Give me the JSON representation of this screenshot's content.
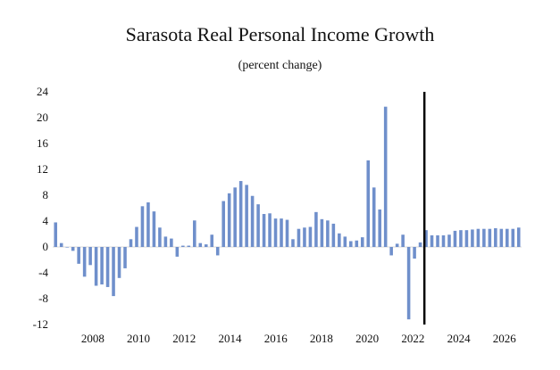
{
  "chart_data": {
    "type": "bar",
    "title": "Sarasota Real Personal Income Growth",
    "subtitle": "(percent change)",
    "xlabel": "",
    "ylabel": "",
    "ylim": [
      -12,
      24
    ],
    "yticks": [
      "24",
      "20",
      "16",
      "12",
      "8",
      "4",
      "0",
      "-4",
      "-8",
      "-12"
    ],
    "xticks": [
      {
        "label": "2008",
        "year": 2008
      },
      {
        "label": "2010",
        "year": 2010
      },
      {
        "label": "2012",
        "year": 2012
      },
      {
        "label": "2014",
        "year": 2014
      },
      {
        "label": "2016",
        "year": 2016
      },
      {
        "label": "2018",
        "year": 2018
      },
      {
        "label": "2020",
        "year": 2020
      },
      {
        "label": "2022",
        "year": 2022
      },
      {
        "label": "2024",
        "year": 2024
      },
      {
        "label": "2026",
        "year": 2026
      }
    ],
    "start_year": 2006.25,
    "end_year": 2026.75,
    "forecast_divider_year": 2022.5,
    "bar_color": "#6f8fcb",
    "divider_color": "#000000",
    "series": [
      {
        "name": "Real Personal Income Growth",
        "values": [
          3.8,
          0.6,
          0.0,
          -0.6,
          -2.6,
          -4.6,
          -2.8,
          -6.0,
          -5.8,
          -6.2,
          -7.6,
          -4.8,
          -3.3,
          1.2,
          3.1,
          6.3,
          6.9,
          5.5,
          3.0,
          1.6,
          1.3,
          -1.5,
          0.2,
          0.2,
          4.1,
          0.6,
          0.4,
          1.9,
          -1.3,
          7.1,
          8.3,
          9.2,
          10.2,
          9.6,
          7.9,
          6.6,
          5.1,
          5.2,
          4.4,
          4.4,
          4.2,
          1.2,
          2.8,
          3.0,
          3.1,
          5.4,
          4.3,
          4.1,
          3.6,
          2.1,
          1.6,
          0.9,
          1.0,
          1.5,
          13.4,
          9.2,
          5.8,
          21.7,
          -1.3,
          0.5,
          1.9,
          -11.2,
          -1.8,
          0.7,
          2.6,
          1.8,
          1.8,
          1.8,
          1.9,
          2.5,
          2.6,
          2.6,
          2.7,
          2.8,
          2.8,
          2.8,
          2.9,
          2.8,
          2.8,
          2.8,
          3.0
        ]
      }
    ]
  }
}
